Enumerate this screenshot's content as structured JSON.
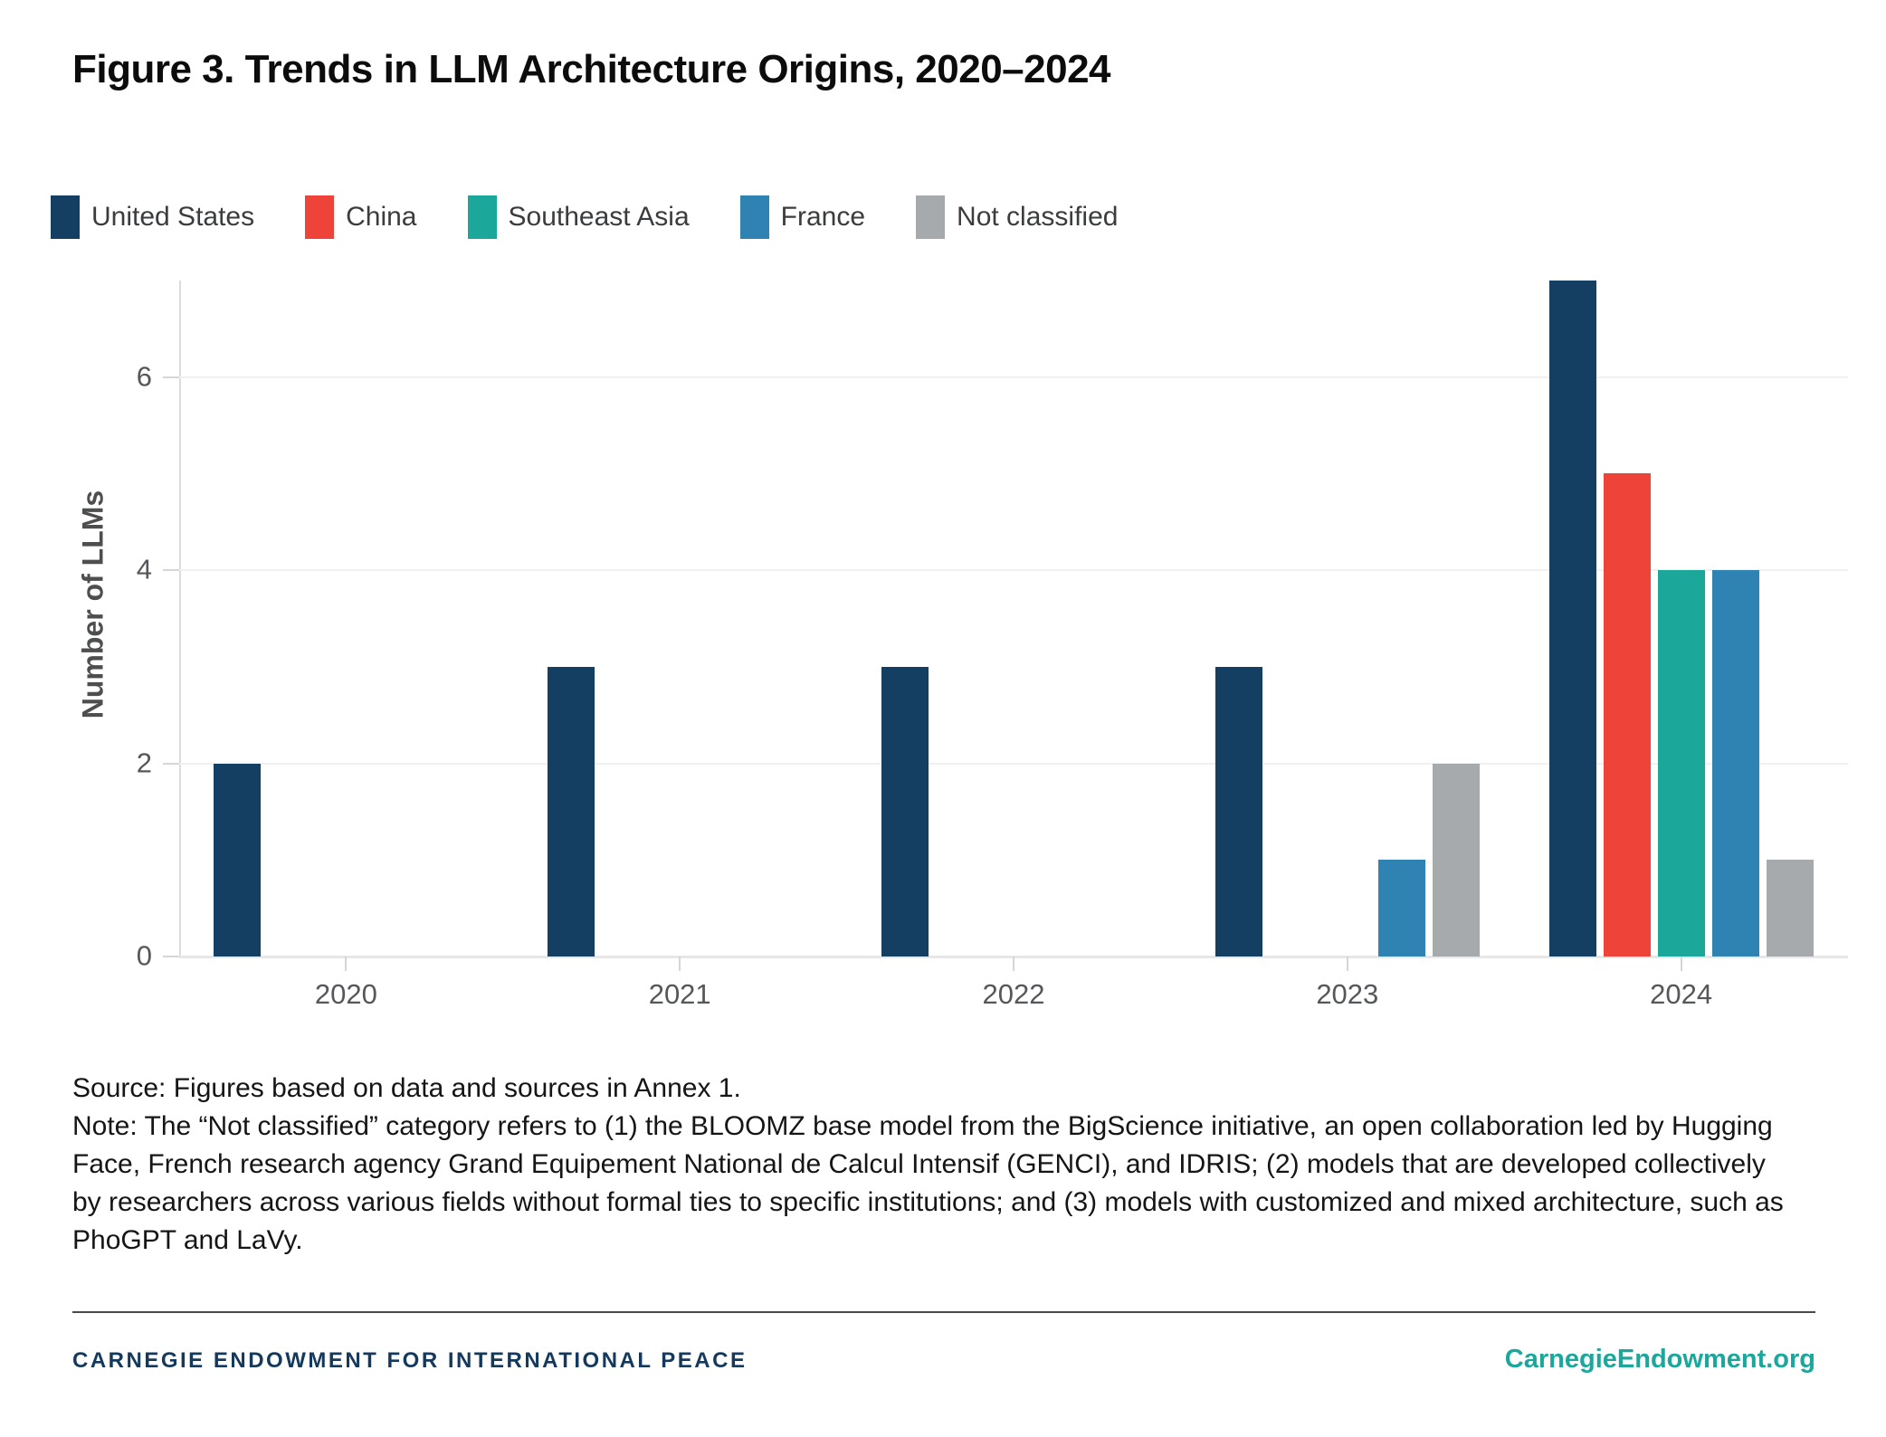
{
  "title": "Figure 3. Trends in LLM Architecture Origins, 2020–2024",
  "legend": [
    {
      "label": "United States",
      "color": "#153e63"
    },
    {
      "label": "China",
      "color": "#ee4338"
    },
    {
      "label": "Southeast Asia",
      "color": "#1ca79b"
    },
    {
      "label": "France",
      "color": "#2e83b3"
    },
    {
      "label": "Not classified",
      "color": "#a7aaac"
    }
  ],
  "chart_data": {
    "type": "bar",
    "categories": [
      "2020",
      "2021",
      "2022",
      "2023",
      "2024"
    ],
    "series": [
      {
        "name": "United States",
        "color": "#153e63",
        "values": [
          2,
          3,
          3,
          3,
          7
        ]
      },
      {
        "name": "China",
        "color": "#ee4338",
        "values": [
          0,
          0,
          0,
          0,
          5
        ]
      },
      {
        "name": "Southeast Asia",
        "color": "#1ca79b",
        "values": [
          0,
          0,
          0,
          0,
          4
        ]
      },
      {
        "name": "France",
        "color": "#2e83b3",
        "values": [
          0,
          0,
          0,
          1,
          4
        ]
      },
      {
        "name": "Not classified",
        "color": "#a7aaac",
        "values": [
          0,
          0,
          0,
          2,
          1
        ]
      }
    ],
    "title": "Figure 3. Trends in LLM Architecture Origins, 2020–2024",
    "xlabel": "",
    "ylabel": "Number of LLMs",
    "yticks": [
      0,
      2,
      4,
      6
    ],
    "ylim": [
      0,
      7
    ],
    "grid": true,
    "legend_position": "top"
  },
  "notes": {
    "source": "Source: Figures based on data and sources in Annex 1.",
    "note": "Note: The “Not classified” category refers to (1) the BLOOMZ base model from the BigScience initiative, an open collaboration led by Hugging Face, French research agency Grand Equipement National de Calcul Intensif (GENCI), and IDRIS; (2) models that are developed collectively by researchers across various fields without formal ties to specific institutions; and (3) models with customized and mixed architecture, such as PhoGPT and LaVy."
  },
  "footer": {
    "org": "CARNEGIE ENDOWMENT FOR INTERNATIONAL PEACE",
    "site": "CarnegieEndowment.org"
  }
}
